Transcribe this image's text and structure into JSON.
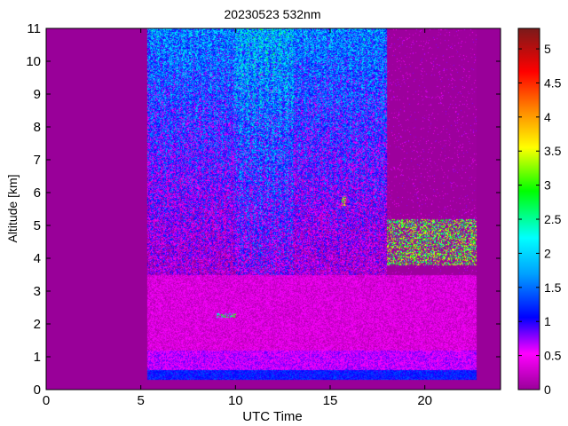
{
  "chart_data": {
    "type": "heatmap",
    "title": "20230523 532nm",
    "xlabel": "UTC Time",
    "ylabel": "Altitude [km]",
    "xlim": [
      0,
      24
    ],
    "ylim": [
      0,
      11
    ],
    "xticks": [
      "0",
      "5",
      "10",
      "15",
      "20"
    ],
    "yticks": [
      "0",
      "1",
      "2",
      "3",
      "4",
      "5",
      "6",
      "7",
      "8",
      "9",
      "10",
      "11"
    ],
    "colorbar": {
      "range": [
        0,
        5.3
      ],
      "ticks": [
        "0",
        "0.5",
        "1",
        "1.5",
        "2",
        "2.5",
        "3",
        "3.5",
        "4",
        "4.5",
        "5"
      ],
      "colormap": "hsv-reversed (magenta-blue-cyan-green-yellow-red-darkred)"
    },
    "background_color": "#990099",
    "data_coverage": {
      "time_start": 5.3,
      "time_end": 22.7,
      "altitude_min": 0.3,
      "altitude_max": 11
    },
    "features": [
      {
        "name": "surface layer",
        "time": [
          5.3,
          22.7
        ],
        "altitude": [
          0.3,
          0.6
        ],
        "value": 1.0
      },
      {
        "name": "boundary layer",
        "time": [
          5.3,
          22.7
        ],
        "altitude": [
          0.6,
          3.5
        ],
        "value": 0.4
      },
      {
        "name": "upper scattering",
        "time": [
          5.3,
          18.0
        ],
        "altitude": [
          3.5,
          11
        ],
        "value": 1.5
      },
      {
        "name": "thin layer",
        "time": [
          9.0,
          10.0
        ],
        "altitude": [
          2.2,
          2.35
        ],
        "value": 2.5
      },
      {
        "name": "cloud layer",
        "time": [
          18.0,
          22.7
        ],
        "altitude": [
          3.8,
          5.2
        ],
        "value": 3.0
      },
      {
        "name": "cloud patch",
        "time": [
          15.6,
          15.8
        ],
        "altitude": [
          5.6,
          5.9
        ],
        "value": 3.5
      }
    ]
  }
}
